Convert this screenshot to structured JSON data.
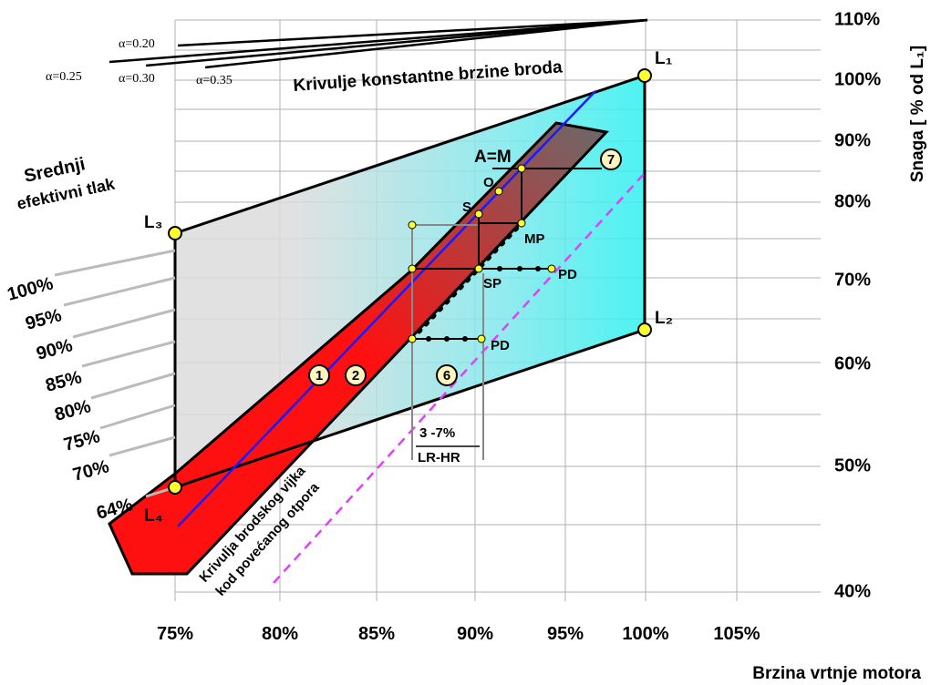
{
  "curves_title": "Krivulje konstantne brzine broda",
  "alpha_labels": [
    "α=0.20",
    "α=0.25",
    "α=0.30",
    "α=0.35"
  ],
  "mep": {
    "title": [
      "Srednji",
      "efektivni tlak"
    ],
    "labels": [
      "100%",
      "95%",
      "90%",
      "85%",
      "80%",
      "75%",
      "70%",
      "64%"
    ]
  },
  "y_axis": {
    "title": "Snaga [ % od L₁]",
    "ticks": [
      "110%",
      "100%",
      "90%",
      "80%",
      "70%",
      "60%",
      "50%",
      "40%"
    ]
  },
  "x_axis": {
    "title": "Brzina vrtnje motora",
    "ticks": [
      "75%",
      "80%",
      "85%",
      "90%",
      "95%",
      "100%",
      "105%"
    ]
  },
  "corners": [
    "L₁",
    "L₂",
    "L₃",
    "L₄"
  ],
  "points": [
    "A=M",
    "O",
    "S",
    "MP",
    "SP",
    "PD",
    "PD"
  ],
  "areas": [
    "1",
    "2",
    "6",
    "7"
  ],
  "margin": {
    "range": "3 -7%",
    "label": "LR-HR"
  },
  "propeller_curve": [
    "Krivulja brodskog vijka",
    "kod povećanog otpora"
  ]
}
